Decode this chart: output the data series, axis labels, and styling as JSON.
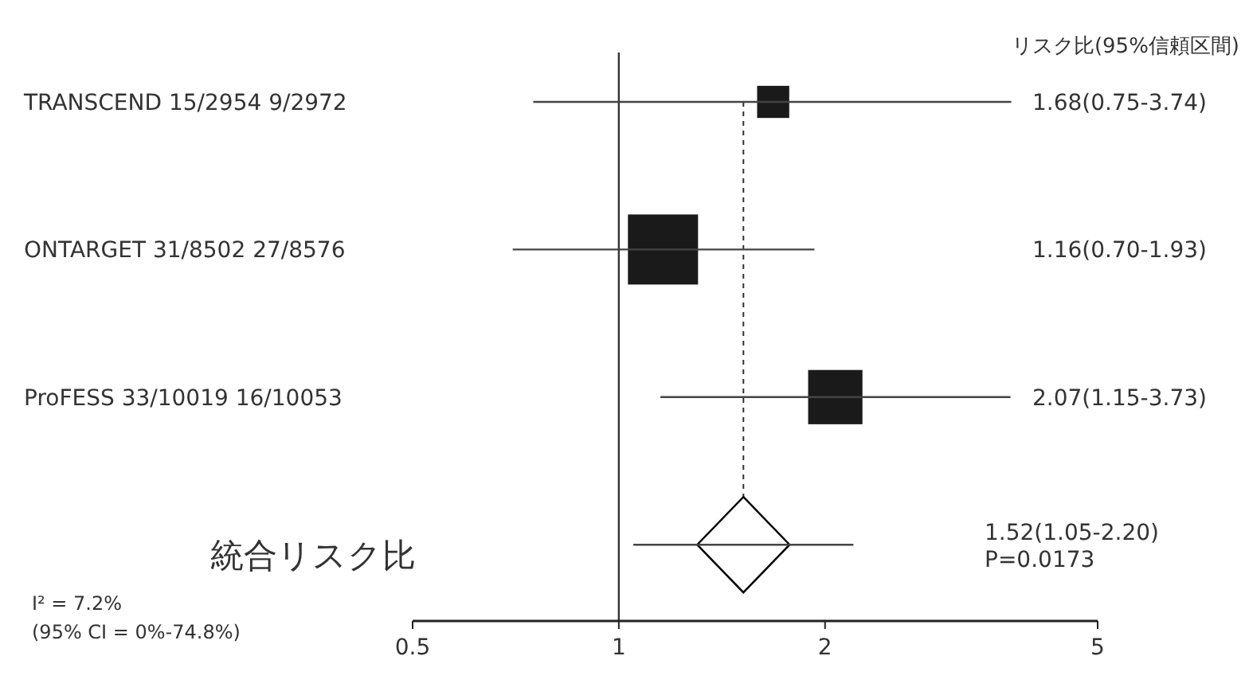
{
  "chart_data": {
    "type": "scatter",
    "orientation": "horizontal",
    "log": "x",
    "categories": [
      "TRANSCEND  15/2954  9/2972",
      "ONTARGET  31/8502  27/8576",
      "ProFESS  33/10019  16/10053",
      "統合リスク比"
    ],
    "series": [
      {
        "type": "bubble",
        "marker": "square",
        "color": "#1a1a1a",
        "values": [
          1.68,
          1.16,
          2.07,
          null
        ],
        "sizes": [
          0.21,
          1,
          0.6,
          null
        ],
        "errors": [
          [
            0.75,
            3.74
          ],
          [
            0.7,
            1.93
          ],
          [
            1.15,
            3.73
          ],
          null
        ]
      },
      {
        "type": "scatter",
        "marker": "diamond",
        "color": "#000000",
        "values": [
          null,
          null,
          null,
          1.52
        ],
        "errors": [
          null,
          null,
          null,
          [
            1.05,
            2.2
          ]
        ]
      }
    ],
    "xlim": [
      0.5,
      5
    ],
    "xticks": [
      0.5,
      1,
      2,
      5
    ],
    "ref_lines": [
      {
        "axis": "x",
        "value": 1
      },
      {
        "axis": "x",
        "value": 1.52,
        "line_style": "dashed"
      }
    ],
    "annotations": [
      "リスク比(95%信頼区間)",
      "1.68(0.75-3.74)",
      "1.16(0.70-1.93)",
      "2.07(1.15-3.73)",
      "1.52(1.05-2.20)\nP=0.0173",
      "I² = 7.2%",
      "(95% CI = 0%-74.8%)"
    ]
  }
}
